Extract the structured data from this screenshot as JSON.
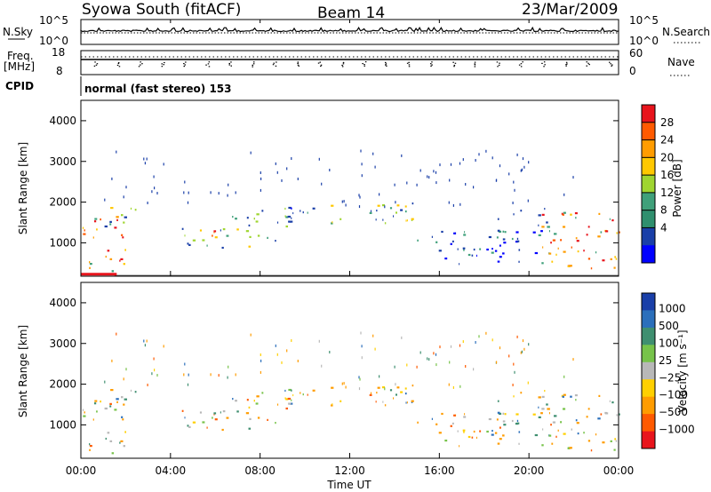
{
  "header": {
    "station": "Syowa South (fitACF)",
    "beam": "Beam 14",
    "date": "23/Mar/2009"
  },
  "top_panels": {
    "nsky_label": "N.Sky",
    "nsky_top": "10^5",
    "nsky_bottom": "10^0",
    "nsearch_top": "10^5",
    "nsearch_bottom": "10^0",
    "nsearch_label": "N.Search",
    "freq_label": "Freq.",
    "freq_unit": "[MHz]",
    "freq_top": "18",
    "freq_bottom": "8",
    "nave_top": "60",
    "nave_bottom": "0",
    "nave_label": "Nave",
    "cpid_label": "CPID",
    "cpid_text": "normal (fast stereo) 153"
  },
  "chart_data": [
    {
      "type": "heatmap",
      "name": "power",
      "ylabel": "Slant Range [km]",
      "xlabel": "",
      "colorbar_label": "Power [dB]",
      "colorbar_ticks": [
        "28",
        "24",
        "20",
        "16",
        "12",
        "8",
        "4"
      ],
      "colorbar_colors": [
        "#e8141c",
        "#ff5a00",
        "#ff9c00",
        "#ffc800",
        "#9fd530",
        "#3fa07a",
        "#2f8f6e",
        "#1a3fa8",
        "#0000ff"
      ],
      "yticks": [
        "4000",
        "3000",
        "2000",
        "1000"
      ],
      "ylim": [
        180,
        4500
      ],
      "xlim": [
        0,
        24
      ],
      "xticks": [
        "00:00",
        "04:00",
        "08:00",
        "12:00",
        "16:00",
        "20:00",
        "00:00"
      ],
      "echo_regions": [
        {
          "t0": 0.0,
          "t1": 2.0,
          "r0": 300,
          "r1": 1700,
          "level": "high"
        },
        {
          "t0": 1.0,
          "t1": 2.5,
          "r0": 1300,
          "r1": 1900,
          "level": "mid"
        },
        {
          "t0": 4.5,
          "t1": 9.0,
          "r0": 900,
          "r1": 1400,
          "level": "mid"
        },
        {
          "t0": 5.5,
          "t1": 7.0,
          "r0": 1150,
          "r1": 1350,
          "level": "high"
        },
        {
          "t0": 6.5,
          "t1": 9.5,
          "r0": 1400,
          "r1": 1900,
          "level": "mid"
        },
        {
          "t0": 8.5,
          "t1": 11.5,
          "r0": 1500,
          "r1": 1900,
          "level": "low"
        },
        {
          "t0": 11.0,
          "t1": 15.5,
          "r0": 1500,
          "r1": 2000,
          "level": "mid"
        },
        {
          "t0": 13.0,
          "t1": 14.5,
          "r0": 1700,
          "r1": 1950,
          "level": "high"
        },
        {
          "t0": 15.0,
          "t1": 20.5,
          "r0": 500,
          "r1": 1300,
          "level": "low"
        },
        {
          "t0": 18.5,
          "t1": 21.0,
          "r0": 1200,
          "r1": 1900,
          "level": "low"
        },
        {
          "t0": 20.5,
          "t1": 24.0,
          "r0": 400,
          "r1": 1800,
          "level": "high"
        },
        {
          "t0": 22.5,
          "t1": 24.0,
          "r0": 300,
          "r1": 700,
          "level": "high"
        }
      ]
    },
    {
      "type": "heatmap",
      "name": "velocity",
      "ylabel": "Slant Range [km]",
      "xlabel": "Time UT",
      "colorbar_label": "Velocity [m s⁻¹]",
      "colorbar_ticks": [
        "1000",
        "500",
        "100",
        "25",
        "−25",
        "−100",
        "−500",
        "−1000"
      ],
      "colorbar_colors": [
        "#1a3fa8",
        "#2b6fbb",
        "#3f8f70",
        "#77c34a",
        "#b8b8b8",
        "#ffd000",
        "#ff9c00",
        "#ff5a00",
        "#e8141c"
      ],
      "yticks": [
        "4000",
        "3000",
        "2000",
        "1000"
      ],
      "ylim": [
        180,
        4500
      ],
      "xlim": [
        0,
        24
      ],
      "xticks": [
        "00:00",
        "04:00",
        "08:00",
        "12:00",
        "16:00",
        "20:00",
        "00:00"
      ]
    }
  ]
}
